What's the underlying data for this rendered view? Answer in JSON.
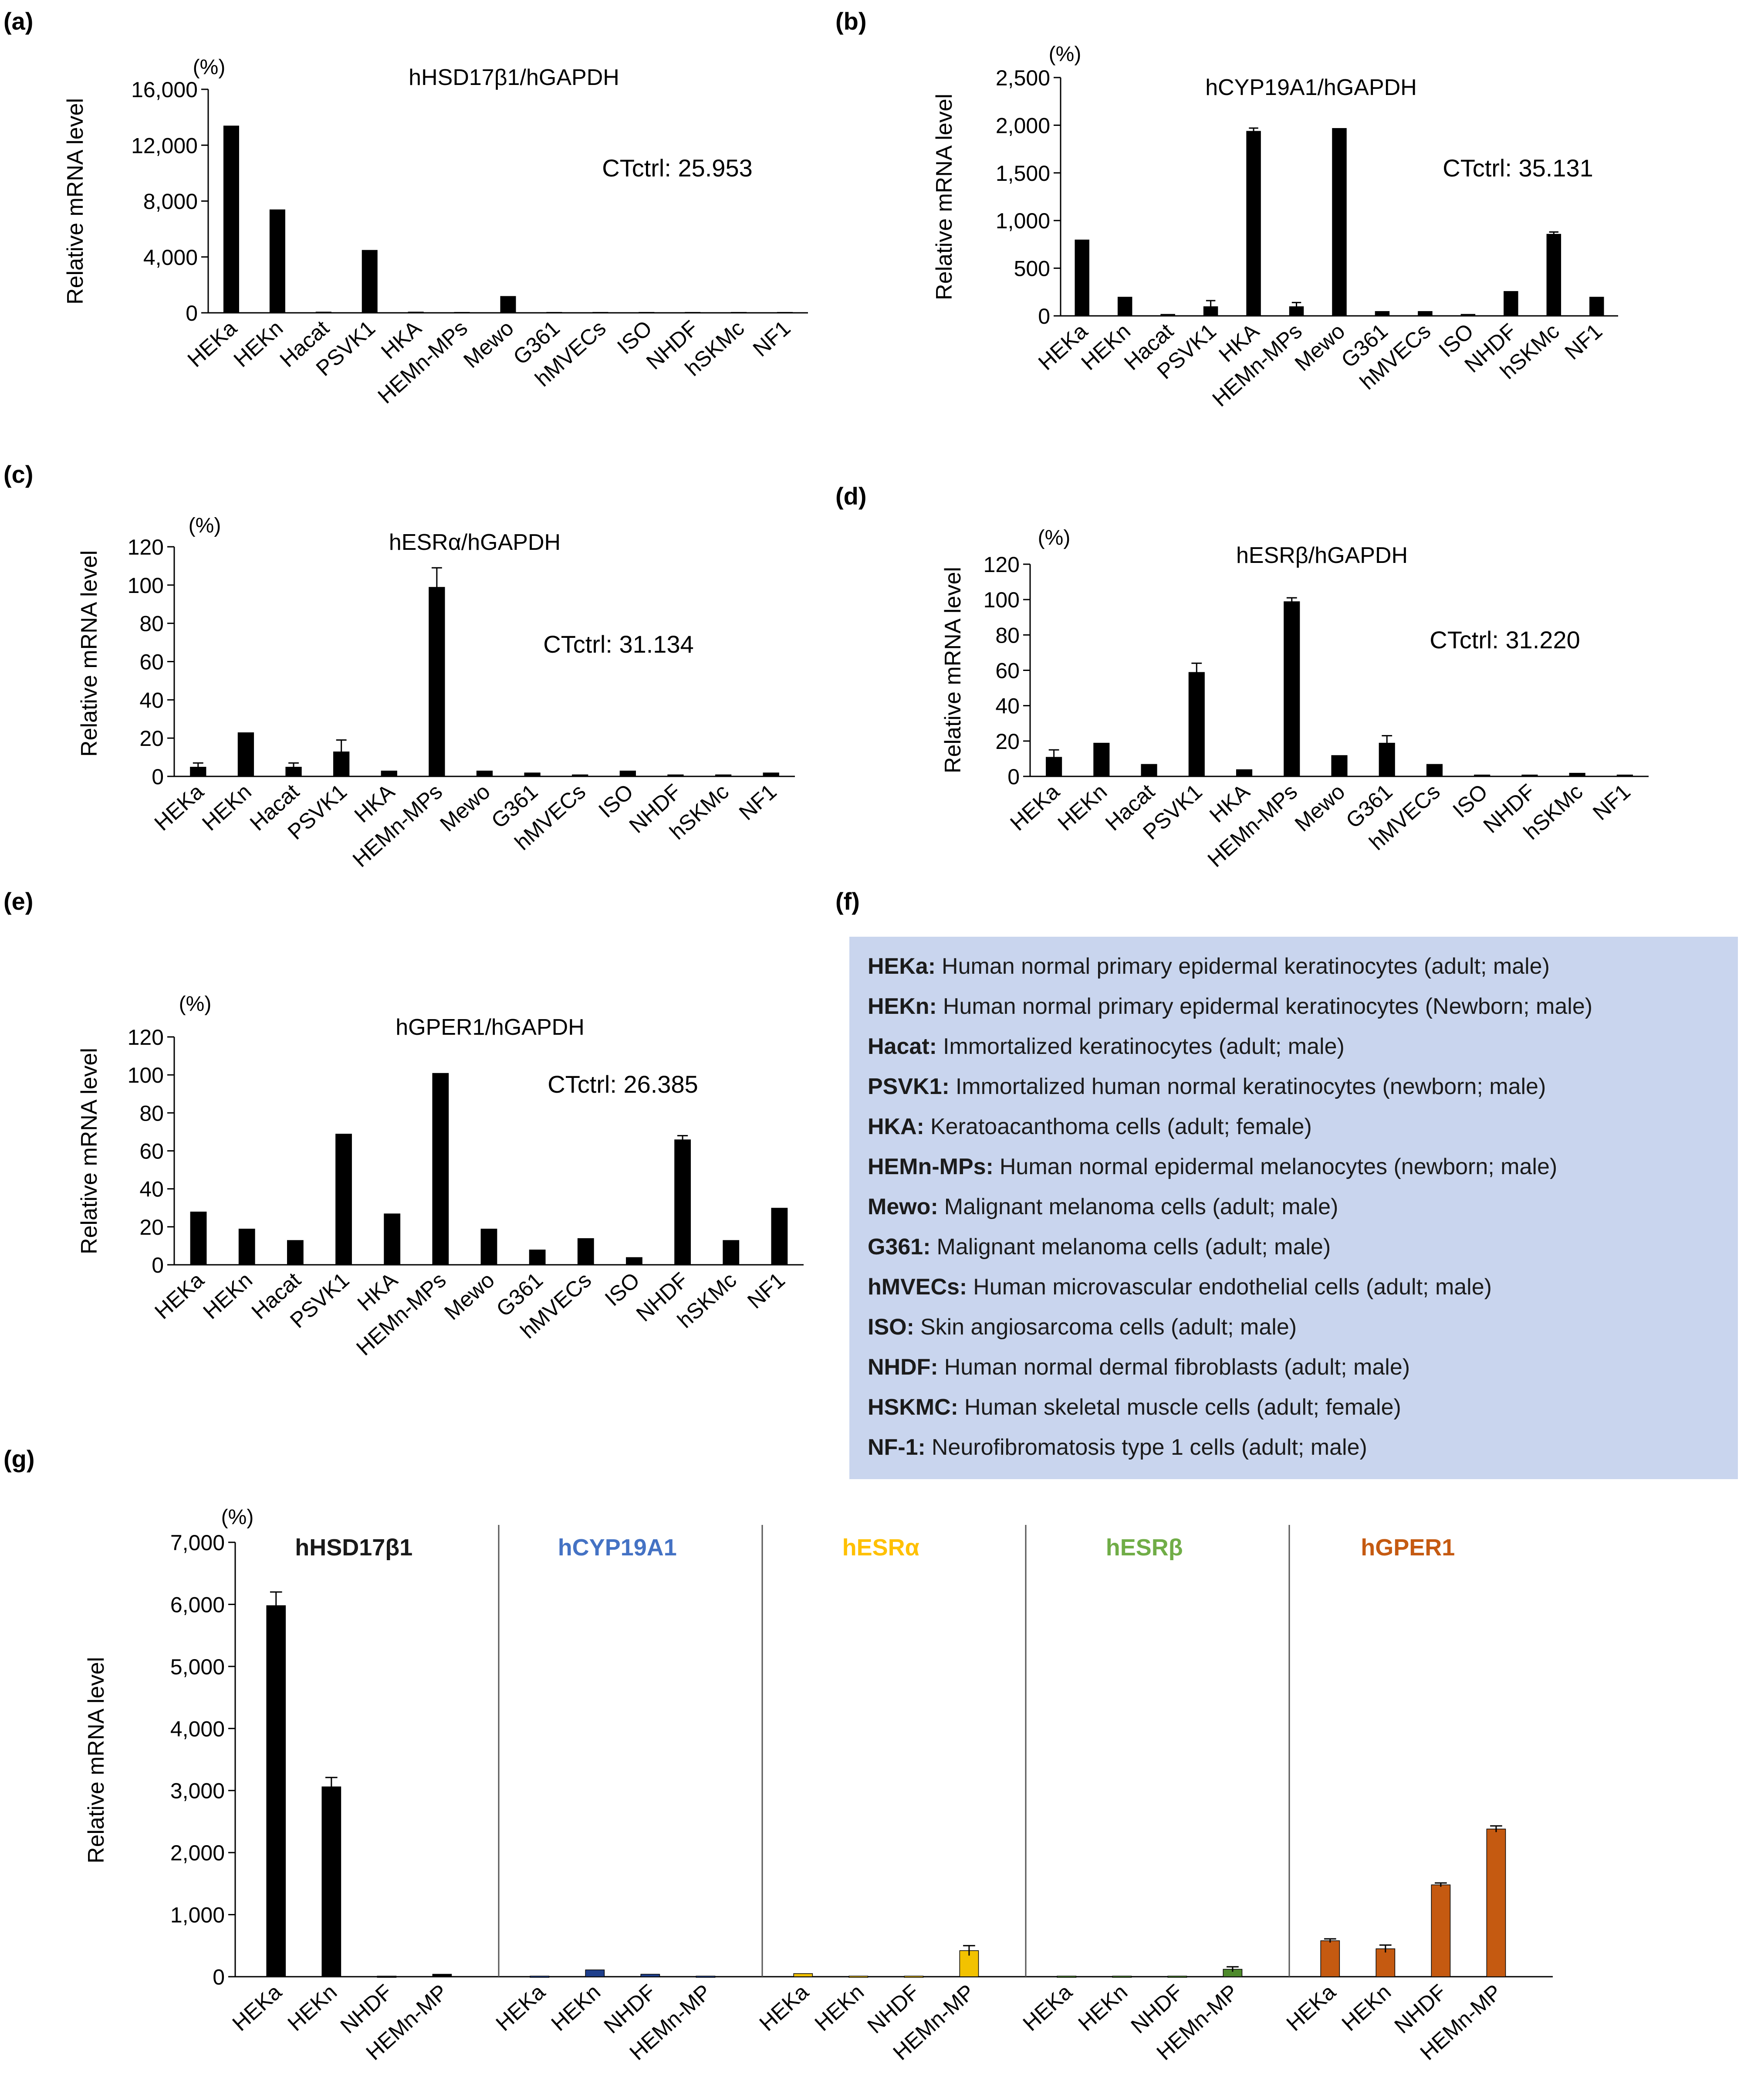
{
  "panels": {
    "a": {
      "label": "(a)"
    },
    "b": {
      "label": "(b)"
    },
    "c": {
      "label": "(c)"
    },
    "d": {
      "label": "(d)"
    },
    "e": {
      "label": "(e)"
    },
    "f": {
      "label": "(f)"
    },
    "g": {
      "label": "(g)"
    }
  },
  "legend": {
    "items": [
      {
        "code": "HEKa:",
        "desc": "Human normal primary epidermal keratinocytes (adult; male)"
      },
      {
        "code": "HEKn:",
        "desc": "Human normal primary epidermal keratinocytes (Newborn; male)"
      },
      {
        "code": "Hacat:",
        "desc": "Immortalized keratinocytes (adult; male)"
      },
      {
        "code": "PSVK1:",
        "desc": "Immortalized human normal keratinocytes (newborn; male)"
      },
      {
        "code": "HKA:",
        "desc": "Keratoacanthoma cells (adult; female)"
      },
      {
        "code": "HEMn-MPs:",
        "desc": "Human normal epidermal melanocytes (newborn; male)"
      },
      {
        "code": "Mewo:",
        "desc": "Malignant melanoma cells (adult; male)"
      },
      {
        "code": "G361:",
        "desc": "Malignant melanoma cells (adult; male)"
      },
      {
        "code": "hMVECs:",
        "desc": "Human microvascular endothelial cells (adult; male)"
      },
      {
        "code": "ISO:",
        "desc": "Skin angiosarcoma cells (adult; male)"
      },
      {
        "code": "NHDF:",
        "desc": "Human normal dermal fibroblasts (adult; male)"
      },
      {
        "code": "HSKMC:",
        "desc": "Human skeletal muscle cells (adult; female)"
      },
      {
        "code": "NF-1:",
        "desc": "Neurofibromatosis type 1 cells (adult; male)"
      }
    ]
  },
  "colors": {
    "bar": "#000000",
    "legend_bg": "#c9d5ee",
    "hHSD17B1": "#000000",
    "hCYP19A1": "#1f3f8c",
    "hESRa": "#f2c200",
    "hESRb": "#4e8a2c",
    "hGPER1": "#c55a11",
    "title_hHSD17B1": "#1a1a1a",
    "title_hCYP19A1": "#4472c4",
    "title_hESRa": "#ffc000",
    "title_hESRb": "#70ad47",
    "title_hGPER1": "#c55a11"
  },
  "chart_data": [
    {
      "id": "a",
      "type": "bar",
      "title": "hHSD17β1/hGAPDH",
      "annotation": "CTctrl: 25.953",
      "ylabel": "Relative mRNA level",
      "unit": "(%)",
      "ylim": [
        0,
        16000
      ],
      "yticks": [
        "0",
        "4,000",
        "8,000",
        "12,000",
        "16,000"
      ],
      "categories": [
        "HEKa",
        "HEKn",
        "Hacat",
        "PSVK1",
        "HKA",
        "HEMn-MPs",
        "Mewo",
        "G361",
        "hMVECs",
        "ISO",
        "NHDF",
        "hSKMc",
        "NF1"
      ],
      "values": [
        13400,
        7400,
        80,
        4500,
        80,
        60,
        1200,
        60,
        60,
        60,
        60,
        60,
        60
      ],
      "errors": [
        0,
        0,
        0,
        0,
        0,
        0,
        0,
        0,
        0,
        0,
        0,
        0,
        0
      ]
    },
    {
      "id": "b",
      "type": "bar",
      "title": "hCYP19A1/hGAPDH",
      "annotation": "CTctrl: 35.131",
      "ylabel": "Relative mRNA level",
      "unit": "(%)",
      "ylim": [
        0,
        2500
      ],
      "yticks": [
        "0",
        "500",
        "1,000",
        "1,500",
        "2,000",
        "2,500"
      ],
      "categories": [
        "HEKa",
        "HEKn",
        "Hacat",
        "PSVK1",
        "HKA",
        "HEMn-MPs",
        "Mewo",
        "G361",
        "hMVECs",
        "ISO",
        "NHDF",
        "hSKMc",
        "NF1"
      ],
      "values": [
        800,
        200,
        20,
        100,
        1940,
        100,
        1970,
        50,
        50,
        20,
        260,
        860,
        200
      ],
      "errors": [
        0,
        0,
        0,
        60,
        30,
        40,
        0,
        0,
        0,
        0,
        0,
        20,
        0
      ]
    },
    {
      "id": "c",
      "type": "bar",
      "title": "hESRα/hGAPDH",
      "annotation": "CTctrl: 31.134",
      "ylabel": "Relative mRNA level",
      "unit": "(%)",
      "ylim": [
        0,
        120
      ],
      "yticks": [
        "0",
        "20",
        "40",
        "60",
        "80",
        "100",
        "120"
      ],
      "categories": [
        "HEKa",
        "HEKn",
        "Hacat",
        "PSVK1",
        "HKA",
        "HEMn-MPs",
        "Mewo",
        "G361",
        "hMVECs",
        "ISO",
        "NHDF",
        "hSKMc",
        "NF1"
      ],
      "values": [
        5,
        23,
        5,
        13,
        3,
        99,
        3,
        2,
        1,
        3,
        1,
        1,
        2
      ],
      "errors": [
        2,
        0,
        2,
        6,
        0,
        10,
        0,
        0,
        0,
        0,
        0,
        0,
        0
      ]
    },
    {
      "id": "d",
      "type": "bar",
      "title": "hESRβ/hGAPDH",
      "annotation": "CTctrl: 31.220",
      "ylabel": "Relative mRNA level",
      "unit": "(%)",
      "ylim": [
        0,
        120
      ],
      "yticks": [
        "0",
        "20",
        "40",
        "60",
        "80",
        "100",
        "120"
      ],
      "categories": [
        "HEKa",
        "HEKn",
        "Hacat",
        "PSVK1",
        "HKA",
        "HEMn-MPs",
        "Mewo",
        "G361",
        "hMVECs",
        "ISO",
        "NHDF",
        "hSKMc",
        "NF1"
      ],
      "values": [
        11,
        19,
        7,
        59,
        4,
        99,
        12,
        19,
        7,
        1,
        1,
        2,
        1
      ],
      "errors": [
        4,
        0,
        0,
        5,
        0,
        2,
        0,
        4,
        0,
        0,
        0,
        0,
        0
      ]
    },
    {
      "id": "e",
      "type": "bar",
      "title": "hGPER1/hGAPDH",
      "annotation": "CTctrl: 26.385",
      "ylabel": "Relative mRNA level",
      "unit": "(%)",
      "ylim": [
        0,
        120
      ],
      "yticks": [
        "0",
        "20",
        "40",
        "60",
        "80",
        "100",
        "120"
      ],
      "categories": [
        "HEKa",
        "HEKn",
        "Hacat",
        "PSVK1",
        "HKA",
        "HEMn-MPs",
        "Mewo",
        "G361",
        "hMVECs",
        "ISO",
        "NHDF",
        "hSKMc",
        "NF1"
      ],
      "values": [
        28,
        19,
        13,
        69,
        27,
        101,
        19,
        8,
        14,
        4,
        66,
        13,
        30
      ],
      "errors": [
        0,
        0,
        0,
        0,
        0,
        0,
        0,
        0,
        0,
        0,
        2,
        0,
        0
      ]
    },
    {
      "id": "g",
      "type": "bar",
      "ylabel": "Relative mRNA level",
      "unit": "(%)",
      "ylim": [
        0,
        7000
      ],
      "yticks": [
        "0",
        "1,000",
        "2,000",
        "3,000",
        "4,000",
        "5,000",
        "6,000",
        "7,000"
      ],
      "categories": [
        "HEKa",
        "HEKn",
        "NHDF",
        "HEMn-MP"
      ],
      "groups": [
        {
          "name": "hHSD17β1",
          "color_key": "hHSD17B1",
          "title_color_key": "title_hHSD17B1",
          "values": [
            5980,
            3060,
            10,
            40
          ],
          "errors": [
            220,
            150,
            0,
            0
          ]
        },
        {
          "name": "hCYP19A1",
          "color_key": "hCYP19A1",
          "title_color_key": "title_hCYP19A1",
          "values": [
            10,
            110,
            40,
            10
          ],
          "errors": [
            0,
            0,
            0,
            0
          ]
        },
        {
          "name": "hESRα",
          "color_key": "hESRa",
          "title_color_key": "title_hESRa",
          "values": [
            50,
            10,
            10,
            420
          ],
          "errors": [
            0,
            0,
            0,
            80
          ]
        },
        {
          "name": "hESRβ",
          "color_key": "hESRb",
          "title_color_key": "title_hESRb",
          "values": [
            10,
            10,
            10,
            120
          ],
          "errors": [
            0,
            0,
            0,
            40
          ]
        },
        {
          "name": "hGPER1",
          "color_key": "hGPER1",
          "title_color_key": "title_hGPER1",
          "values": [
            580,
            450,
            1480,
            2380
          ],
          "errors": [
            30,
            60,
            30,
            50
          ]
        }
      ]
    }
  ]
}
